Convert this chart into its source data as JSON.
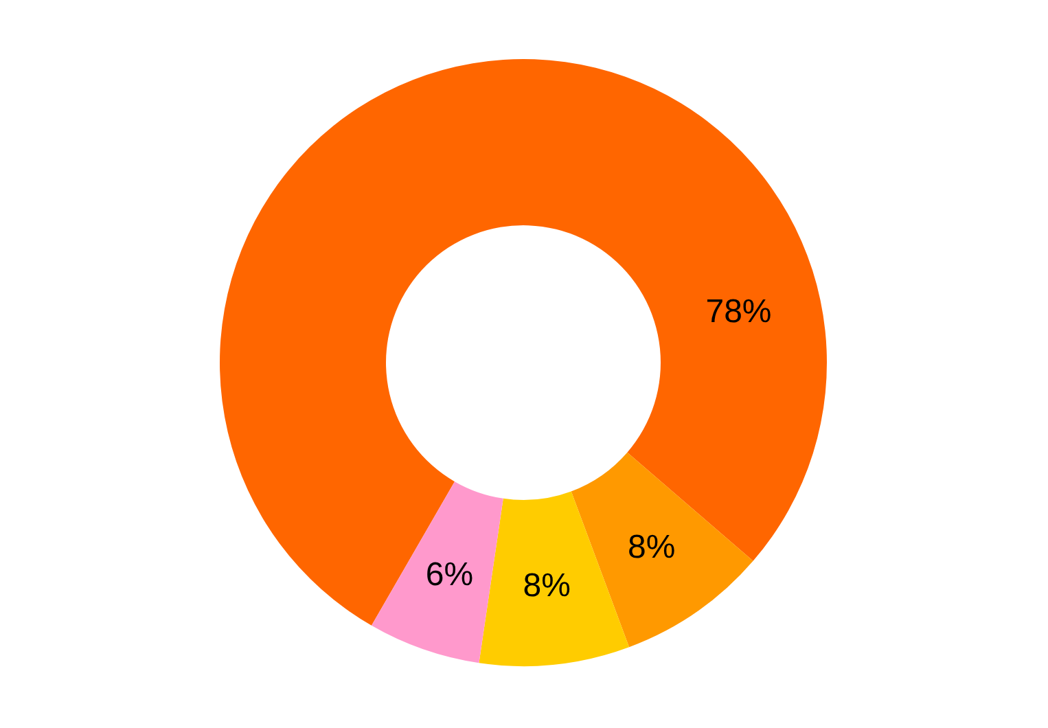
{
  "chart_data": {
    "type": "donut",
    "categories": [
      null,
      null,
      null,
      null
    ],
    "values": [
      78,
      8,
      8,
      6
    ],
    "colors": [
      "#ff6600",
      "#ff9900",
      "#ffcc00",
      "#ff99cc"
    ],
    "value_labels": [
      "78%",
      "8%",
      "8%",
      "6%"
    ]
  }
}
